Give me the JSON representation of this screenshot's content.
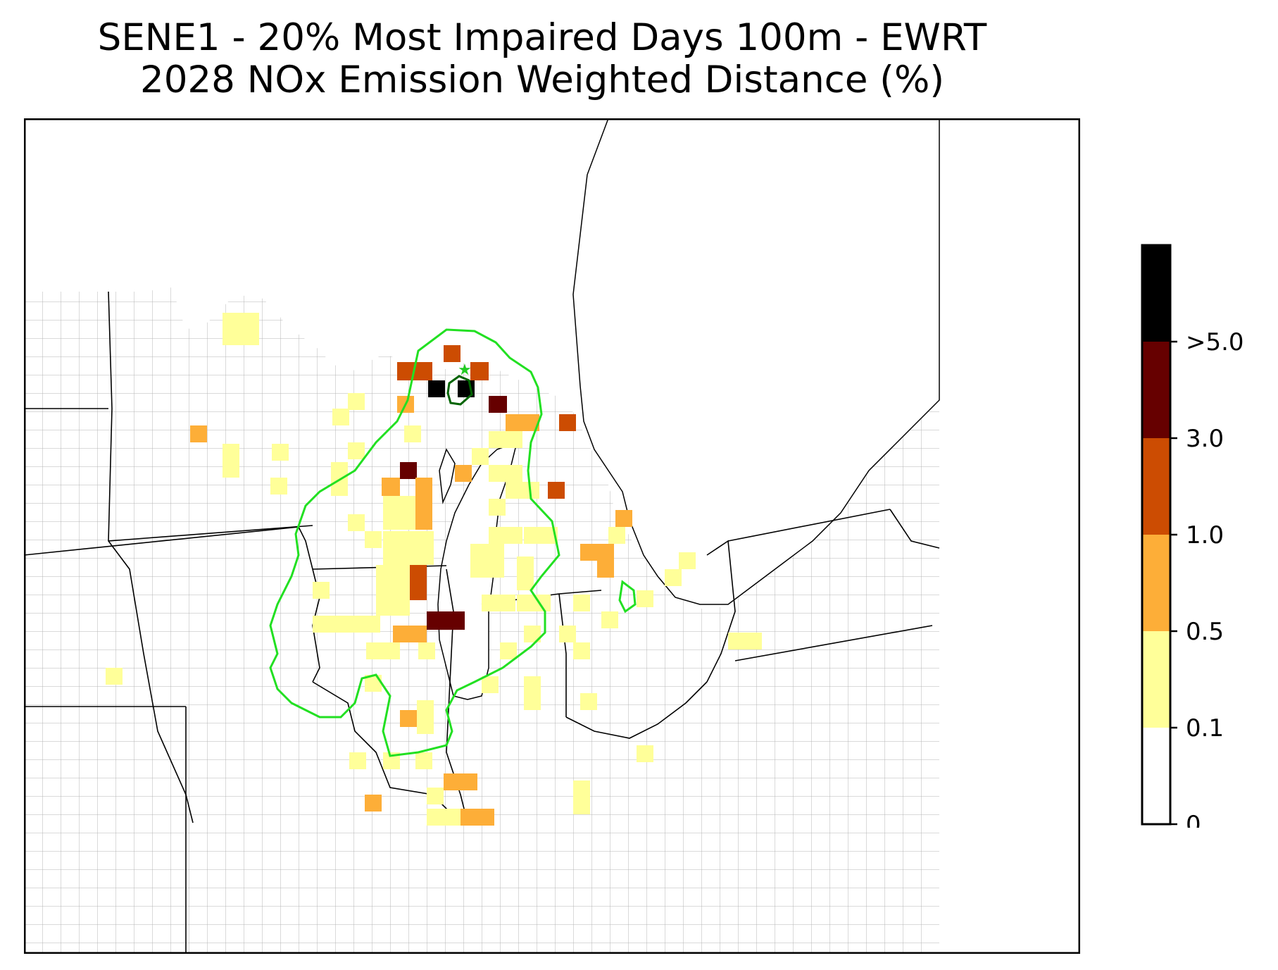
{
  "title": {
    "line1": "SENE1 - 20% Most Impaired Days 100m - EWRT",
    "line2": "2028 NOx Emission Weighted Distance (%)"
  },
  "map": {
    "receptor_marker": "star",
    "colors": {
      "bin_0_1": "#ffff99",
      "bin_0_5": "#fdae38",
      "bin_1_0": "#cc4c02",
      "bin_3_0": "#660000",
      "bin_5_0": "#000000",
      "contour_outer": "#22e022",
      "contour_inner": "#006400",
      "state_border": "#000000",
      "county_border": "#a0a0a0"
    }
  },
  "colorbar": {
    "ticks": [
      "0",
      "0.1",
      "0.5",
      "1.0",
      "3.0",
      ">5.0"
    ],
    "colors": [
      "#ffffff",
      "#ffff99",
      "#fdae38",
      "#cc4c02",
      "#660000",
      "#000000"
    ]
  }
}
